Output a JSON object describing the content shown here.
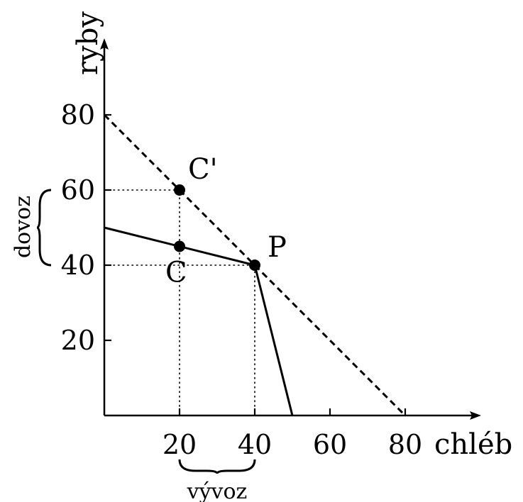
{
  "chart_data": {
    "type": "line",
    "xlabel": "chléb",
    "ylabel": "ryby",
    "xlim": [
      0,
      80
    ],
    "ylim": [
      0,
      80
    ],
    "x_ticks": [
      20,
      40,
      60,
      80
    ],
    "y_ticks": [
      20,
      40,
      60,
      80
    ],
    "grid": false,
    "series": [
      {
        "style": "solid",
        "points": [
          [
            0,
            50
          ],
          [
            40,
            40
          ],
          [
            50,
            0
          ]
        ]
      },
      {
        "style": "dashed",
        "points": [
          [
            0,
            80
          ],
          [
            80,
            0
          ]
        ]
      }
    ],
    "points": [
      {
        "label": "C'",
        "x": 20,
        "y": 60
      },
      {
        "label": "C",
        "x": 20,
        "y": 45
      },
      {
        "label": "P",
        "x": 40,
        "y": 40
      }
    ],
    "guides": [
      {
        "from": [
          0,
          60
        ],
        "to": [
          20,
          60
        ]
      },
      {
        "from": [
          0,
          40
        ],
        "to": [
          40,
          40
        ]
      },
      {
        "from": [
          20,
          0
        ],
        "to": [
          20,
          60
        ]
      },
      {
        "from": [
          40,
          0
        ],
        "to": [
          40,
          40
        ]
      }
    ],
    "annotations": {
      "import_label": "dovoz",
      "import_range": [
        40,
        60
      ],
      "export_label": "vývoz",
      "export_range": [
        20,
        40
      ]
    }
  }
}
